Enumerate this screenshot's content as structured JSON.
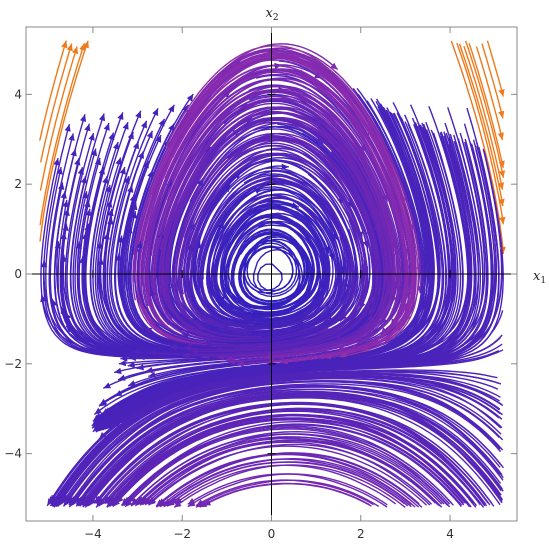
{
  "chart_data": {
    "type": "streamplot",
    "title": "",
    "xlabel": "x",
    "xlabel_sub": "1",
    "ylabel": "x",
    "ylabel_sub": "2",
    "xlim": [
      -5.5,
      5.5
    ],
    "ylim": [
      -5.5,
      5.5
    ],
    "xticks": [
      -4,
      -2,
      0,
      2,
      4
    ],
    "yticks": [
      -4,
      -2,
      0,
      2,
      4
    ],
    "xtick_labels": [
      "−4",
      "−2",
      "0",
      "2",
      "4"
    ],
    "ytick_labels": [
      "−4",
      "−2",
      "0",
      "2",
      "4"
    ],
    "vector_field": {
      "dx1": "x2",
      "dx2": "-x1 - 0.5*x1*x2 + 0.1*x2"
    },
    "color_by": "speed",
    "colors": {
      "slow": "#2a1fbf",
      "mid": "#8a2bb0",
      "fast": "#f07a1a",
      "axes": "#000000",
      "frame": "#888888"
    },
    "grid": false,
    "legend": "none"
  }
}
